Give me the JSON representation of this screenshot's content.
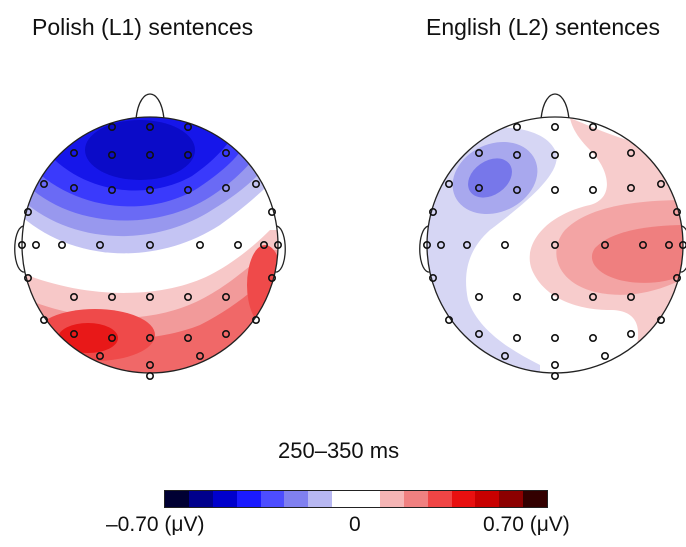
{
  "panels": [
    {
      "title": "Polish (L1) sentences"
    },
    {
      "title": "English (L2) sentences"
    }
  ],
  "time_window": "250–350 ms",
  "colorbar": {
    "min_label": "–0.70 (μV)",
    "mid_label": "0",
    "max_label": "0.70 (μV)",
    "colors": [
      "#000033",
      "#00008c",
      "#0000cc",
      "#1a1aff",
      "#4d4dff",
      "#8080f0",
      "#b8b8f2",
      "#ffffff",
      "#ffffff",
      "#f5b5b5",
      "#f08080",
      "#f04545",
      "#e81010",
      "#c80000",
      "#8c0000",
      "#330000"
    ]
  },
  "colors": {
    "negative": "#1a1aff",
    "positive": "#e81010"
  }
}
